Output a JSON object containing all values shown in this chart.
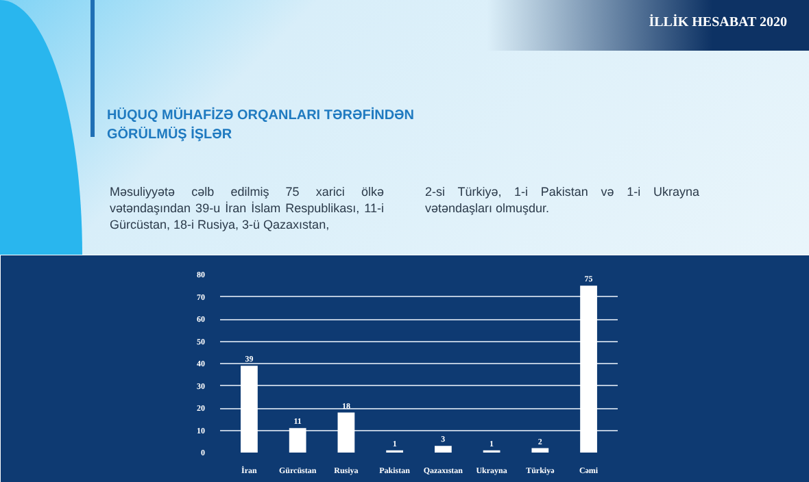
{
  "chart_data": {
    "type": "bar",
    "title": "HÜQUQ MÜHAFİZƏ ORQANLARI TƏRƏFİNDƏN GÖRÜLMÜŞ İŞLƏR",
    "subtitle": "İLLİK HESABAT 2020",
    "annotations": [
      "Məsuliyyətə cəlb edilmiş 75 xarici ölkə vətəndaşından 39-u İran İslam Respublikası, 11-i Gürcüstan, 18-i Rusiya, 3-ü Qazaxıstan,",
      "2-si Türkiyə, 1-i Pakistan və 1-i Ukrayna vətəndaşları olmuşdur."
    ],
    "categories": [
      "İran",
      "Gürcüstan",
      "Rusiya",
      "Pakistan",
      "Qazaxıstan",
      "Ukrayna",
      "Türkiyə",
      "Cəmi"
    ],
    "values": [
      39,
      11,
      18,
      1,
      3,
      1,
      2,
      75
    ],
    "color": "#ffffff",
    "ylim": [
      0,
      80
    ],
    "yticks": [
      0,
      10,
      20,
      30,
      40,
      50,
      60,
      70,
      80
    ],
    "grid": "y",
    "data_labels": true
  }
}
